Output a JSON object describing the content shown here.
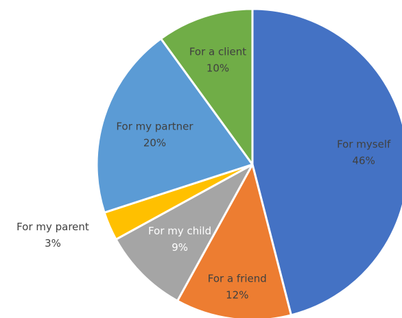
{
  "chart_data": {
    "type": "pie",
    "title": "",
    "start_angle_deg": 0,
    "direction": "clockwise",
    "slices": [
      {
        "label": "For myself",
        "value": 46,
        "value_label": "46%",
        "color": "#4472C4",
        "text_color": "#404040"
      },
      {
        "label": "For a friend",
        "value": 12,
        "value_label": "12%",
        "color": "#ED7D31",
        "text_color": "#404040"
      },
      {
        "label": "For my child",
        "value": 9,
        "value_label": "9%",
        "color": "#A5A5A5",
        "text_color": "#ffffff"
      },
      {
        "label": "For my parent",
        "value": 3,
        "value_label": "3%",
        "color": "#FFC000",
        "text_color": "#404040"
      },
      {
        "label": "For my partner",
        "value": 20,
        "value_label": "20%",
        "color": "#5B9BD5",
        "text_color": "#404040"
      },
      {
        "label": "For a client",
        "value": 10,
        "value_label": "10%",
        "color": "#70AD47",
        "text_color": "#404040"
      }
    ]
  }
}
